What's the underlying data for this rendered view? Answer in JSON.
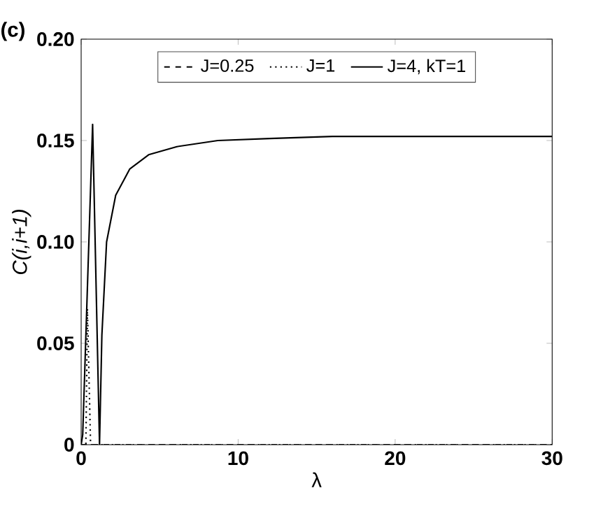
{
  "chart_data": {
    "type": "line",
    "xlabel": "λ",
    "ylabel": "C(i,i+1)",
    "annotations": [
      "(c)"
    ],
    "xlim": [
      0,
      30
    ],
    "ylim": [
      0,
      0.2
    ],
    "xticks": [
      0,
      10,
      20,
      30
    ],
    "yticks": [
      0,
      0.05,
      {
        "value": 0.1,
        "label": "0.10"
      },
      0.15,
      {
        "value": 0.2,
        "label": "0.20"
      }
    ],
    "grid": false,
    "legend": "top",
    "marker": "none",
    "series": [
      {
        "name": "J=0.25",
        "color": "#000000",
        "line_style": "dashed",
        "x": [
          0,
          30
        ],
        "values": [
          0,
          0
        ]
      },
      {
        "name": "J=1",
        "color": "#000000",
        "line_style": "dotted",
        "x": [
          0,
          0.3,
          0.4,
          0.6,
          30
        ],
        "values": [
          0,
          0,
          0.067,
          0,
          0
        ]
      },
      {
        "name": "J=4, kT=1",
        "color": "#000000",
        "line_style": "solid",
        "x": [
          0,
          0.1,
          0.73,
          1.17,
          1.32,
          1.62,
          2.2,
          3.1,
          4.3,
          6.1,
          8.7,
          12,
          16,
          20,
          30
        ],
        "values": [
          0,
          0.005,
          0.158,
          0,
          0.054,
          0.1,
          0.123,
          0.136,
          0.143,
          0.147,
          0.15,
          0.151,
          0.152,
          0.152,
          0.152
        ]
      }
    ]
  }
}
